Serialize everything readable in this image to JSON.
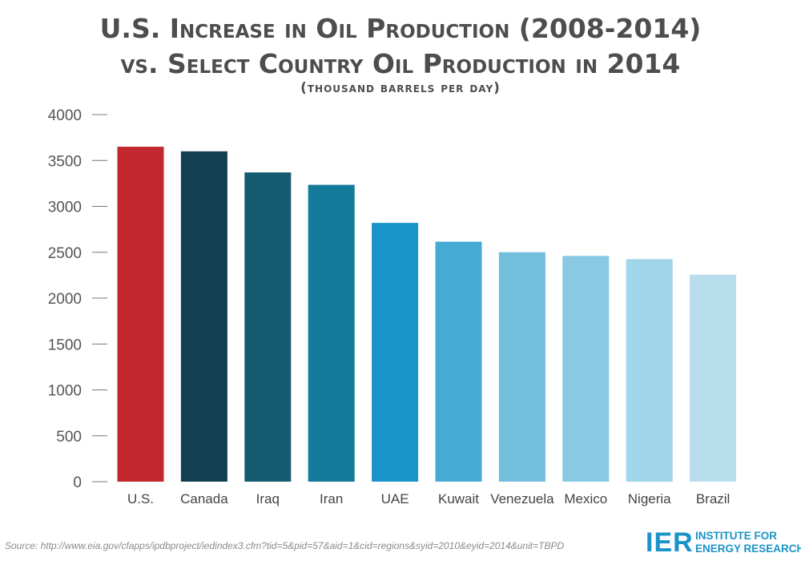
{
  "title_line1": "U.S. Increase in Oil Production (2008-2014)",
  "title_line2": "vs. Select Country Oil Production in 2014",
  "subtitle": "(thousand barrels per day)",
  "source": "Source: http://www.eia.gov/cfapps/ipdbproject/iedindex3.cfm?tid=5&pid=57&aid=1&cid=regions&syid=2010&eyid=2014&unit=TBPD",
  "logo": {
    "mark": "IER",
    "line1": "INSTITUTE FOR",
    "line2": "ENERGY RESEARCH"
  },
  "chart_data": {
    "type": "bar",
    "title": "U.S. Increase in Oil Production (2008-2014) vs. Select Country Oil Production in 2014",
    "subtitle": "(thousand barrels per day)",
    "xlabel": "",
    "ylabel": "",
    "categories": [
      "U.S.",
      "Canada",
      "Iraq",
      "Iran",
      "UAE",
      "Kuwait",
      "Venezuela",
      "Mexico",
      "Nigeria",
      "Brazil"
    ],
    "values": [
      3650,
      3600,
      3370,
      3235,
      2820,
      2615,
      2500,
      2460,
      2425,
      2255
    ],
    "colors": [
      "#c1272d",
      "#123f52",
      "#145b70",
      "#147a99",
      "#1a93c8",
      "#45aad4",
      "#72bedd",
      "#89c9e3",
      "#a1d5ea",
      "#b8deee"
    ],
    "ylim": [
      0,
      4000
    ],
    "yticks": [
      0,
      500,
      1000,
      1500,
      2000,
      2500,
      3000,
      3500,
      4000
    ],
    "grid": false,
    "legend": "none"
  }
}
